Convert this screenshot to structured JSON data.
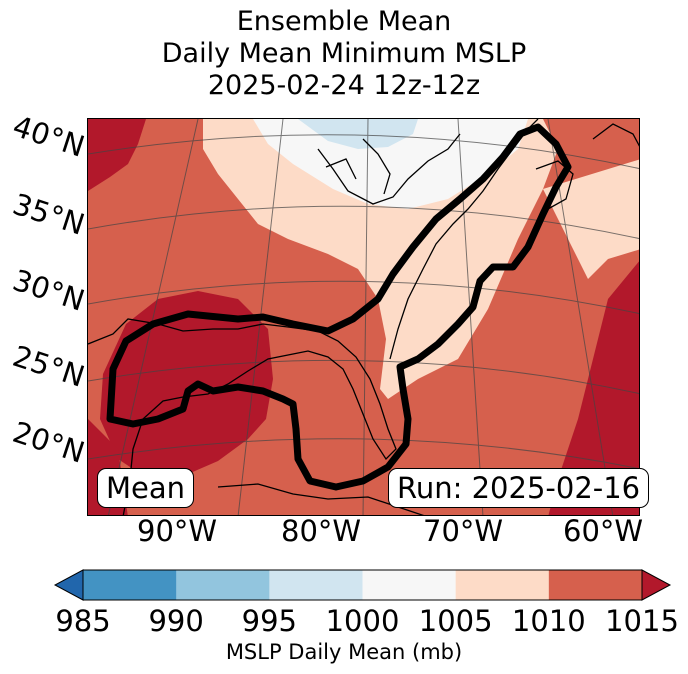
{
  "title": {
    "line1": "Ensemble Mean",
    "line2": "Daily Mean Minimum MSLP",
    "line3": "2025-02-24 12z-12z"
  },
  "map": {
    "latitude_labels": [
      "40°N",
      "35°N",
      "30°N",
      "25°N",
      "20°N"
    ],
    "longitude_labels": [
      "90°W",
      "80°W",
      "70°W",
      "60°W"
    ],
    "left_box": "Mean",
    "right_box": "Run: 2025-02-16",
    "region_contour": "area of interest outline (black)",
    "colors": {
      "ocean_land_1010_1015": "#d6604d",
      "high_1015_plus": "#b2182b",
      "band_1005_1010": "#fddbc7",
      "band_1000_1005": "#f7f7f7",
      "band_995_1000": "#d1e5f0"
    }
  },
  "colorbar": {
    "bounds": [
      "985",
      "990",
      "995",
      "1000",
      "1005",
      "1010",
      "1015"
    ],
    "colors": [
      "#2166ac",
      "#4393c3",
      "#92c5de",
      "#d1e5f0",
      "#f7f7f7",
      "#fddbc7",
      "#d6604d",
      "#b2182b"
    ],
    "label": "MSLP Daily Mean (mb)"
  }
}
